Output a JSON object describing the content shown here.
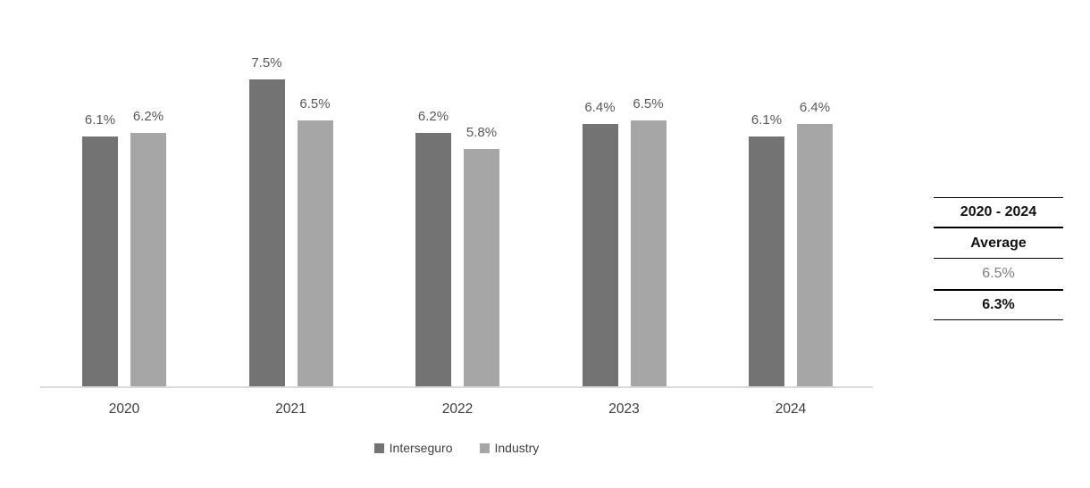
{
  "chart_data": {
    "type": "bar",
    "title": "",
    "categories": [
      "2020",
      "2021",
      "2022",
      "2023",
      "2024"
    ],
    "series": [
      {
        "name": "Interseguro",
        "color": "#737373",
        "values": [
          6.1,
          7.5,
          6.2,
          6.4,
          6.1
        ],
        "labels": [
          "6.1%",
          "7.5%",
          "6.2%",
          "6.4%",
          "6.1%"
        ]
      },
      {
        "name": "Industry",
        "color": "#a6a6a6",
        "values": [
          6.2,
          6.5,
          5.8,
          6.5,
          6.4
        ],
        "labels": [
          "6.2%",
          "6.5%",
          "5.8%",
          "6.5%",
          "6.4%"
        ]
      }
    ],
    "ylim": [
      0,
      9.1
    ],
    "grid": false,
    "legend_position": "bottom",
    "data_labels": true,
    "axis_line_color": "#d9d9d9",
    "data_label_color": "#595959"
  },
  "summary_table": {
    "period": "2020 - 2024",
    "metric": "Average",
    "values": [
      "6.5%",
      "6.3%"
    ]
  }
}
